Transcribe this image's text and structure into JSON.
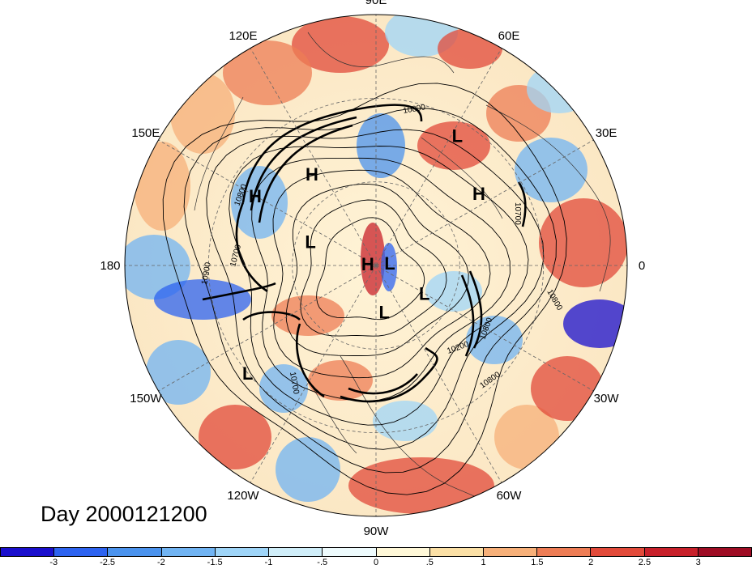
{
  "title": "Day 2000121200",
  "longitude_labels": [
    "90E",
    "60E",
    "30E",
    "0",
    "30W",
    "60W",
    "90W",
    "120W",
    "150W",
    "180",
    "150E",
    "120E"
  ],
  "pressure_systems": [
    {
      "label": "H",
      "lon": 125,
      "lat": 50
    },
    {
      "label": "L",
      "lon": 58,
      "lat": 35
    },
    {
      "label": "H",
      "lon": 35,
      "lat": 45
    },
    {
      "label": "H",
      "lon": 150,
      "lat": 40
    },
    {
      "label": "L",
      "lon": 160,
      "lat": 65
    },
    {
      "label": "H",
      "lon": 170,
      "lat": 87
    },
    {
      "label": "L",
      "lon": 10,
      "lat": 85
    },
    {
      "label": "L",
      "lon": -30,
      "lat": 70
    },
    {
      "label": "L",
      "lon": -80,
      "lat": 73
    },
    {
      "label": "L",
      "lon": -140,
      "lat": 30
    }
  ],
  "contour_labels": [
    "10800",
    "10800",
    "10900",
    "10700",
    "10800",
    "10700",
    "10200",
    "10800",
    "10800",
    "10700"
  ],
  "colorbar": {
    "colors": [
      "#1a0fcd",
      "#2d63f0",
      "#4b93ee",
      "#71b4f3",
      "#9fd5f8",
      "#d0eef9",
      "#eefbfd",
      "#fff8d8",
      "#fbe0a6",
      "#f7b079",
      "#ee7d55",
      "#e24a3a",
      "#c8202a",
      "#9e0c24"
    ],
    "ticks": [
      "-3",
      "-2.5",
      "-2",
      "-1.5",
      "-1",
      "-.5",
      "0",
      ".5",
      "1",
      "1.5",
      "2",
      "2.5",
      "3"
    ]
  },
  "palette": {
    "positive": "#e24a3a",
    "negative": "#2d63f0",
    "neutral": "#fff8d8"
  }
}
